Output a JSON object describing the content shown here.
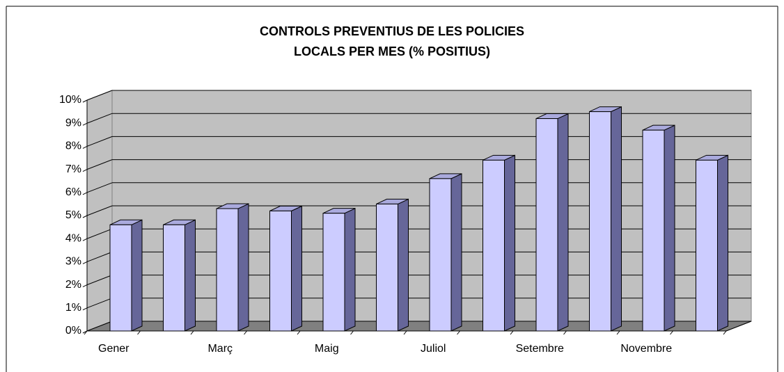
{
  "chart_data": {
    "type": "bar3d",
    "title": [
      "CONTROLS PREVENTIUS DE LES POLICIES",
      "LOCALS PER MES (% POSITIUS)"
    ],
    "categories": [
      "Gener",
      null,
      "Març",
      null,
      "Maig",
      null,
      "Juliol",
      null,
      "Setembre",
      null,
      "Novembre",
      null
    ],
    "values": [
      4.6,
      4.6,
      5.3,
      5.2,
      5.1,
      5.5,
      6.6,
      7.4,
      9.2,
      9.5,
      8.7,
      7.4
    ],
    "color": "#ccccff",
    "side_color": "#666699",
    "top_color": "#aaaadd",
    "ylim": [
      0,
      10
    ],
    "yticks": [
      {
        "value": 0,
        "label": "0%"
      },
      {
        "value": 1,
        "label": "1%"
      },
      {
        "value": 2,
        "label": "2%"
      },
      {
        "value": 3,
        "label": "3%"
      },
      {
        "value": 4,
        "label": "4%"
      },
      {
        "value": 5,
        "label": "5%"
      },
      {
        "value": 6,
        "label": "6%"
      },
      {
        "value": 7,
        "label": "7%"
      },
      {
        "value": 8,
        "label": "8%"
      },
      {
        "value": 9,
        "label": "9%"
      },
      {
        "value": 10,
        "label": "10%"
      }
    ],
    "grid": true
  }
}
